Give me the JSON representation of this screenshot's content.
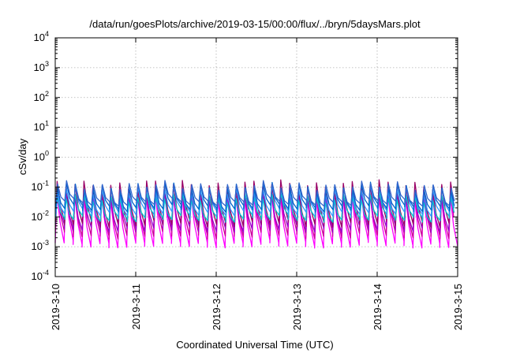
{
  "chart_data": {
    "type": "line",
    "title": "/data/run/goesPlots/archive/2019-03-15/00:00/flux/../bryn/5daysMars.plot",
    "xlabel": "Coordinated Universal Time (UTC)",
    "ylabel": "cSv/day",
    "yscale": "log",
    "xlim": [
      "2019-3-10",
      "2019-3-15"
    ],
    "ylim": [
      0.0001,
      10000
    ],
    "x_ticks": [
      "2019-3-10",
      "2019-3-11",
      "2019-3-12",
      "2019-3-13",
      "2019-3-14",
      "2019-3-15"
    ],
    "y_ticks": [
      {
        "value": 0.0001,
        "base": "10",
        "exp": "-4"
      },
      {
        "value": 0.001,
        "base": "10",
        "exp": "-3"
      },
      {
        "value": 0.01,
        "base": "10",
        "exp": "-2"
      },
      {
        "value": 0.1,
        "base": "10",
        "exp": "-1"
      },
      {
        "value": 1,
        "base": "10",
        "exp": "0"
      },
      {
        "value": 10,
        "base": "10",
        "exp": "1"
      },
      {
        "value": 100,
        "base": "10",
        "exp": "2"
      },
      {
        "value": 1000,
        "base": "10",
        "exp": "3"
      },
      {
        "value": 10000,
        "base": "10",
        "exp": "4"
      }
    ],
    "grid": true,
    "cycles_per_day": 9,
    "series": [
      {
        "color": "#ff00ff",
        "peak": 0.055,
        "trough": 0.0012
      },
      {
        "color": "#cc0099",
        "peak": 0.07,
        "trough": 0.0025
      },
      {
        "color": "#9900cc",
        "peak": 0.06,
        "trough": 0.004
      },
      {
        "color": "#990066",
        "peak": 0.12,
        "trough": 0.006
      },
      {
        "color": "#00cccc",
        "peak": 0.045,
        "trough": 0.009
      },
      {
        "color": "#3399ff",
        "peak": 0.08,
        "trough": 0.014
      },
      {
        "color": "#0066cc",
        "peak": 0.1,
        "trough": 0.02
      },
      {
        "color": "#3366cc",
        "peak": 0.11,
        "trough": 0.03
      }
    ]
  }
}
